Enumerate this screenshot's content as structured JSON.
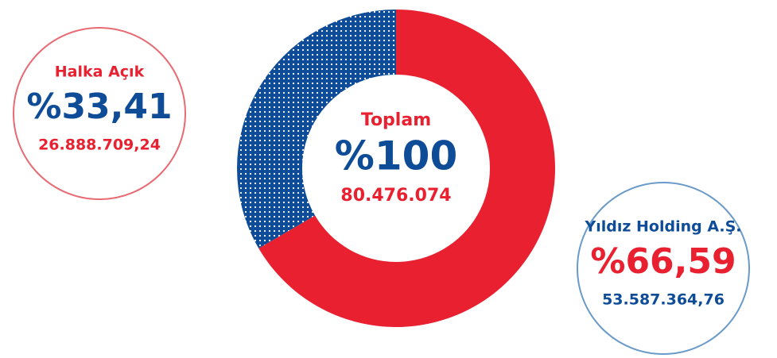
{
  "chart_data": {
    "type": "donut",
    "series": [
      {
        "name": "Yıldız Holding A.Ş.",
        "color": "#e8202f",
        "value": 66.59,
        "value_label": "%66,59",
        "amount": 53587364.76,
        "amount_label": "53.587.364,76",
        "text_color": "#0f4c97",
        "circle_color": "#6a9ac9"
      },
      {
        "name": "Halka Açık",
        "color": "#0f4c97",
        "value": 33.41,
        "value_label": "%33,41",
        "amount": 26888709.24,
        "amount_label": "26.888.709,24",
        "text_color": "#e8202f",
        "circle_color": "#e86a72"
      }
    ],
    "center": {
      "title": "Toplam",
      "value": 100,
      "value_label": "%100",
      "amount": 80476074,
      "amount_label": "80.476.074"
    }
  }
}
